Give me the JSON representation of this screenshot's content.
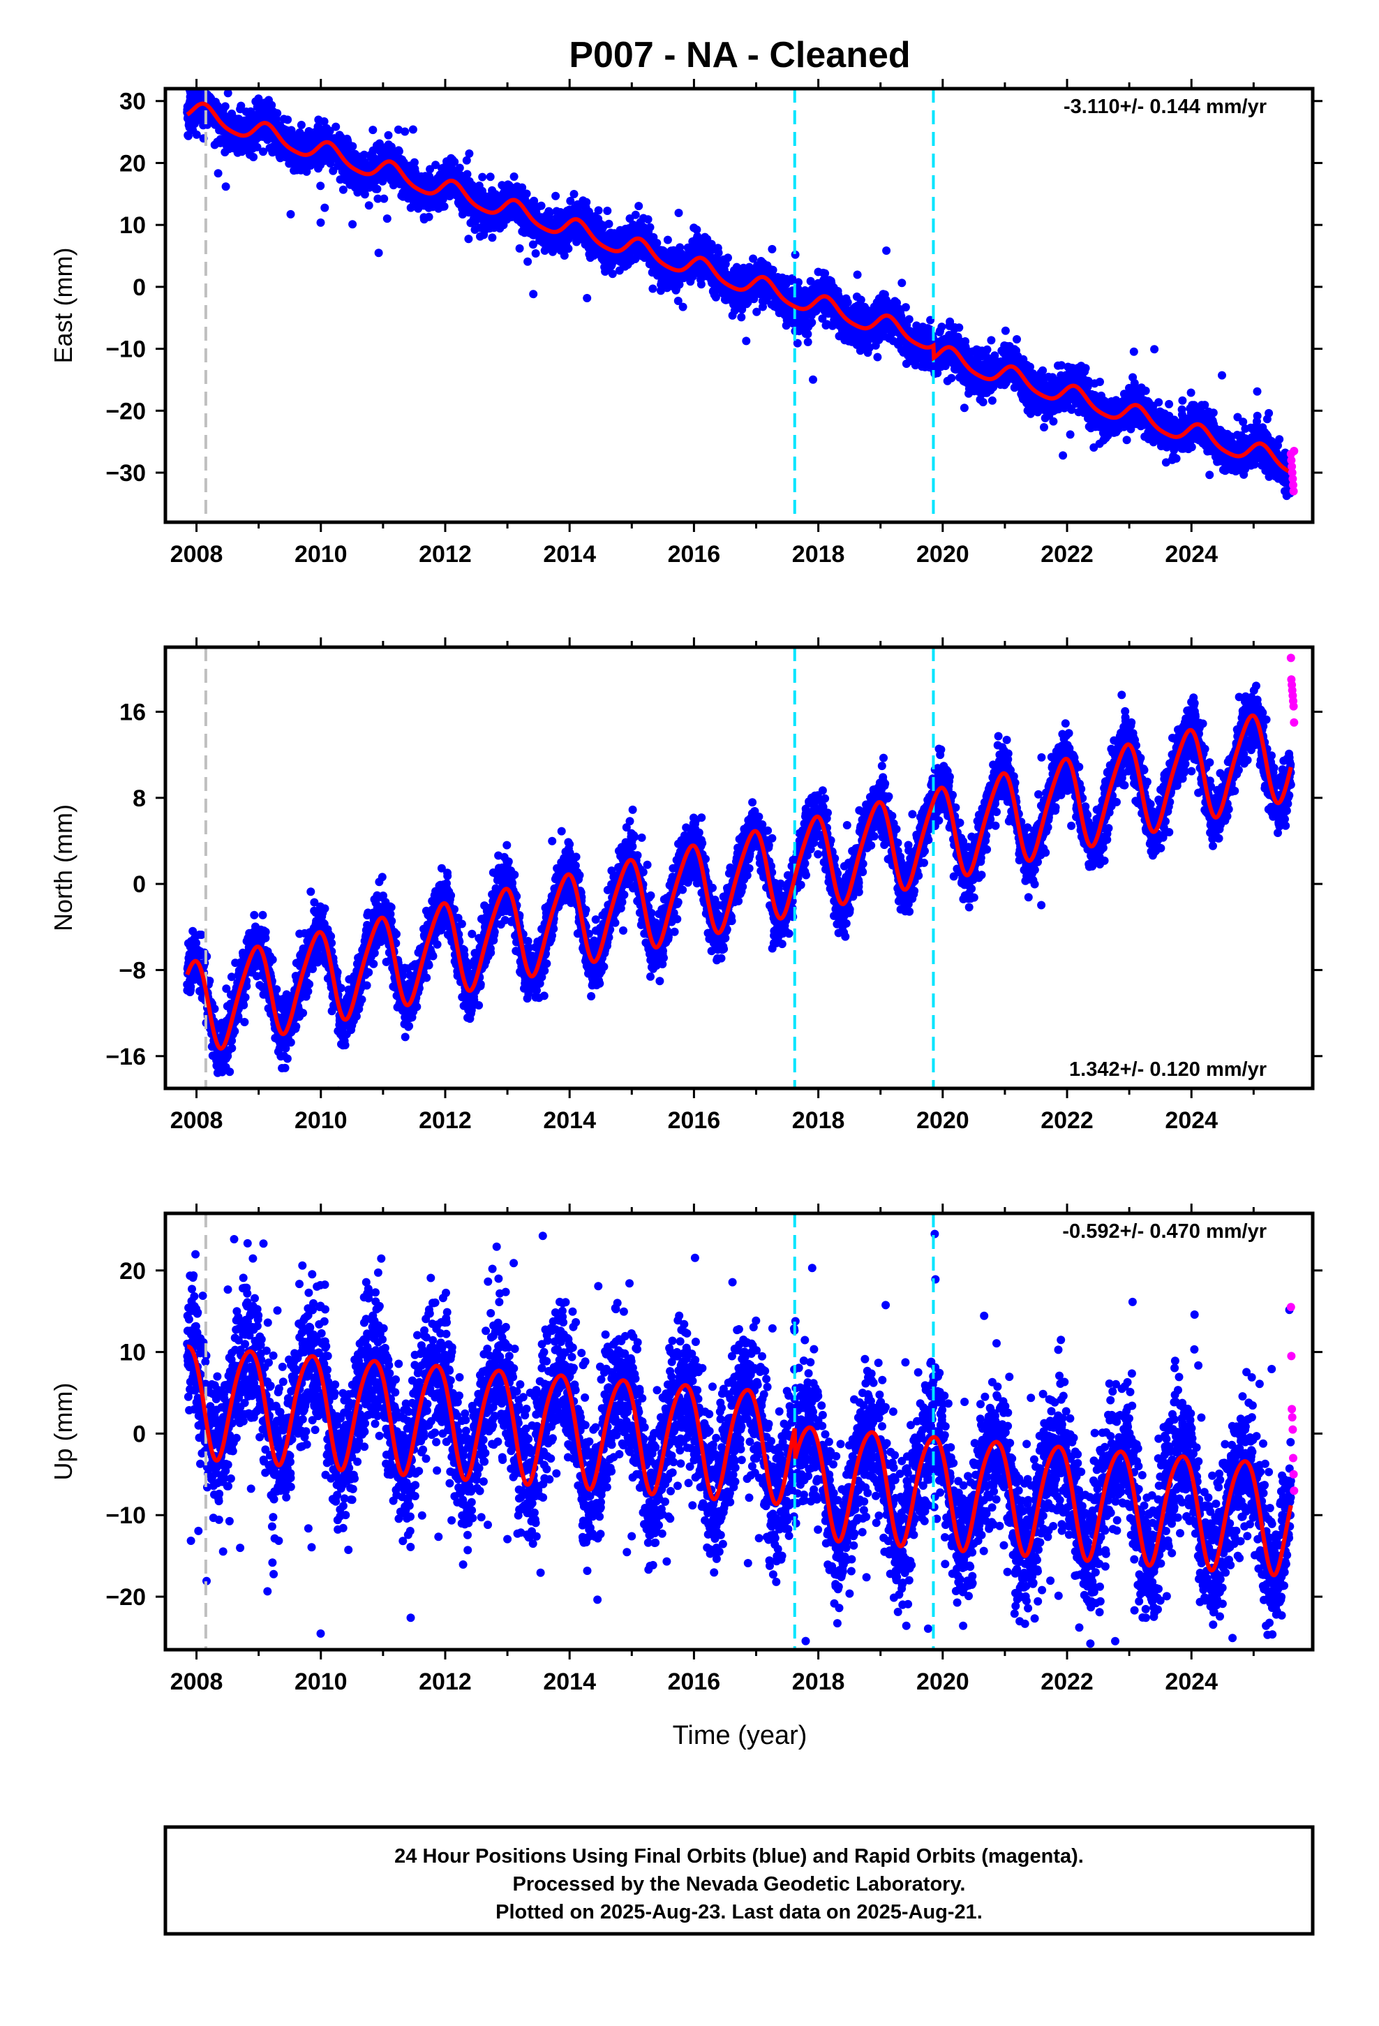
{
  "title": "P007  - NA - Cleaned",
  "xlabel": "Time (year)",
  "footer": {
    "line1": "24 Hour Positions Using Final Orbits (blue) and Rapid Orbits (magenta).",
    "line2": "Processed by the Nevada Geodetic Laboratory.",
    "line3": "Plotted on 2025-Aug-23. Last data on 2025-Aug-21."
  },
  "colors": {
    "final_orbits": "#0000ff",
    "rapid_orbits": "#ff00ff",
    "model_fit": "#ff0000",
    "equipment_change": "#00e5ff",
    "start_marker": "#c0c0c0"
  },
  "chart_data": [
    {
      "type": "scatter",
      "component": "east",
      "ylabel": "East (mm)",
      "rate": "-3.110+/- 0.144 mm/yr",
      "rate_position": "top-right",
      "xlim": [
        2007.5,
        2025.95
      ],
      "ylim": [
        -38,
        32
      ],
      "yticks": [
        -30,
        -20,
        -10,
        0,
        10,
        20,
        30
      ],
      "xticks": [
        2008,
        2010,
        2012,
        2014,
        2016,
        2018,
        2020,
        2022,
        2024
      ],
      "trend": {
        "start_year": 2007.85,
        "start_value": 28.5,
        "slope": -3.11
      },
      "seasonal": {
        "annual_amp": 1.6,
        "annual_phase": 0.7,
        "semiannual_amp": 0.3,
        "semiannual_phase": 0.2
      },
      "offsets": [
        {
          "year": 2019.85,
          "value": -2.0
        }
      ],
      "scatter_sd": 1.6,
      "outlier_fraction": 0.03,
      "vlines": [
        {
          "year": 2008.15,
          "kind": "start_marker"
        },
        {
          "year": 2017.62,
          "kind": "equipment_change"
        },
        {
          "year": 2019.85,
          "kind": "equipment_change"
        }
      ],
      "final_range": [
        2007.85,
        2025.6
      ],
      "rapid_range": [
        2025.6,
        2025.65
      ],
      "rapid_values": [
        -27,
        -28,
        -29,
        -30,
        -31,
        -32,
        -33,
        -26.5
      ]
    },
    {
      "type": "scatter",
      "component": "north",
      "ylabel": "North (mm)",
      "rate": "1.342+/- 0.120 mm/yr",
      "rate_position": "bottom-right",
      "xlim": [
        2007.5,
        2025.95
      ],
      "ylim": [
        -19,
        22
      ],
      "yticks": [
        -16,
        -8,
        0,
        8,
        16
      ],
      "xticks": [
        2008,
        2010,
        2012,
        2014,
        2016,
        2018,
        2020,
        2022,
        2024
      ],
      "trend": {
        "start_year": 2007.85,
        "start_value": -11.5,
        "slope": 1.342
      },
      "seasonal": {
        "annual_amp": 4.2,
        "annual_phase": 2.0,
        "semiannual_amp": 0.6,
        "semiannual_phase": 0.5
      },
      "offsets": [],
      "scatter_sd": 1.3,
      "outlier_fraction": 0.02,
      "vlines": [
        {
          "year": 2008.15,
          "kind": "start_marker"
        },
        {
          "year": 2017.62,
          "kind": "equipment_change"
        },
        {
          "year": 2019.85,
          "kind": "equipment_change"
        }
      ],
      "final_range": [
        2007.85,
        2025.6
      ],
      "rapid_range": [
        2025.6,
        2025.65
      ],
      "rapid_values": [
        21,
        19,
        18.5,
        18,
        17.5,
        17,
        16.5,
        15
      ]
    },
    {
      "type": "scatter",
      "component": "up",
      "ylabel": "Up (mm)",
      "rate": "-0.592+/- 0.470 mm/yr",
      "rate_position": "top-right",
      "xlim": [
        2007.5,
        2025.95
      ],
      "ylim": [
        -26.5,
        27
      ],
      "yticks": [
        -20,
        -10,
        0,
        10,
        20
      ],
      "xticks": [
        2008,
        2010,
        2012,
        2014,
        2016,
        2018,
        2020,
        2022,
        2024
      ],
      "trend": {
        "start_year": 2007.85,
        "start_value": 4.5,
        "slope": -0.592
      },
      "seasonal": {
        "annual_amp": 6.8,
        "annual_phase": 2.6,
        "semiannual_amp": 0.8,
        "semiannual_phase": 1.0
      },
      "offsets": [
        {
          "year": 2017.62,
          "value": -4.0
        }
      ],
      "scatter_sd": 4.2,
      "outlier_fraction": 0.04,
      "vlines": [
        {
          "year": 2008.15,
          "kind": "start_marker"
        },
        {
          "year": 2017.62,
          "kind": "equipment_change"
        },
        {
          "year": 2019.85,
          "kind": "equipment_change"
        }
      ],
      "final_range": [
        2007.85,
        2025.6
      ],
      "rapid_range": [
        2025.6,
        2025.65
      ],
      "rapid_values": [
        15.5,
        9.5,
        3,
        2,
        0.5,
        -3,
        -5,
        -7
      ]
    }
  ]
}
